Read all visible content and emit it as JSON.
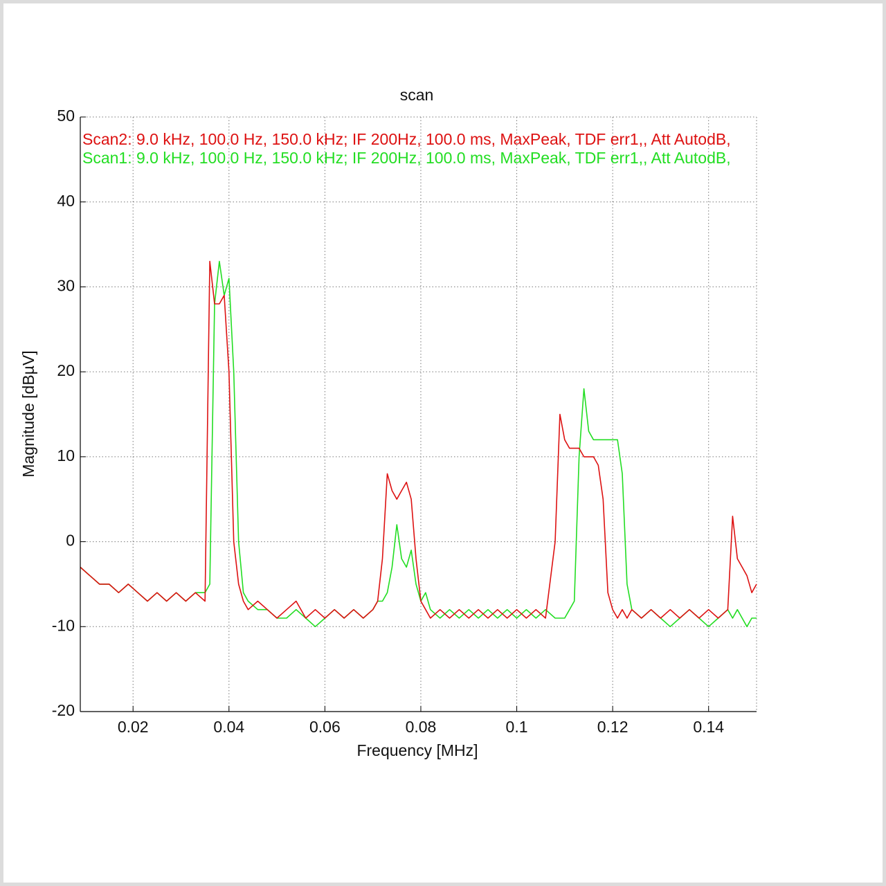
{
  "chart_data": {
    "type": "line",
    "title": "scan",
    "x_label": "Frequency [MHz]",
    "y_label": "Magnitude [dBµV]",
    "x": [
      0.009,
      0.011,
      0.013,
      0.015,
      0.017,
      0.019,
      0.021,
      0.023,
      0.025,
      0.027,
      0.029,
      0.031,
      0.033,
      0.035,
      0.036,
      0.037,
      0.038,
      0.039,
      0.04,
      0.041,
      0.042,
      0.043,
      0.044,
      0.046,
      0.048,
      0.05,
      0.052,
      0.054,
      0.056,
      0.058,
      0.06,
      0.062,
      0.064,
      0.066,
      0.068,
      0.07,
      0.071,
      0.072,
      0.073,
      0.074,
      0.075,
      0.076,
      0.077,
      0.078,
      0.079,
      0.08,
      0.081,
      0.082,
      0.084,
      0.086,
      0.088,
      0.09,
      0.092,
      0.094,
      0.096,
      0.098,
      0.1,
      0.102,
      0.104,
      0.106,
      0.108,
      0.109,
      0.11,
      0.111,
      0.112,
      0.113,
      0.114,
      0.115,
      0.116,
      0.117,
      0.118,
      0.119,
      0.12,
      0.121,
      0.122,
      0.123,
      0.124,
      0.126,
      0.128,
      0.13,
      0.132,
      0.134,
      0.136,
      0.138,
      0.14,
      0.142,
      0.144,
      0.145,
      0.146,
      0.147,
      0.148,
      0.149,
      0.15
    ],
    "series": [
      {
        "name": "Scan1: 9.0 kHz, 100.0 Hz, 150.0 kHz; IF 200Hz, 100.0 ms, MaxPeak, TDF err1,, Att AutodB,",
        "color": "#22dd22",
        "values": [
          -3,
          -4,
          -5,
          -5,
          -6,
          -5,
          -6,
          -7,
          -6,
          -7,
          -6,
          -7,
          -6,
          -6,
          -5,
          28,
          33,
          29,
          31,
          20,
          0,
          -6,
          -7,
          -8,
          -8,
          -9,
          -9,
          -8,
          -9,
          -10,
          -9,
          -8,
          -9,
          -8,
          -9,
          -8,
          -7,
          -7,
          -6,
          -3,
          2,
          -2,
          -3,
          -1,
          -5,
          -7,
          -6,
          -8,
          -9,
          -8,
          -9,
          -8,
          -9,
          -8,
          -9,
          -8,
          -9,
          -8,
          -9,
          -8,
          -9,
          -9,
          -9,
          -8,
          -7,
          10,
          18,
          13,
          12,
          12,
          12,
          12,
          12,
          12,
          8,
          -5,
          -8,
          -9,
          -8,
          -9,
          -10,
          -9,
          -8,
          -9,
          -10,
          -9,
          -8,
          -9,
          -8,
          -9,
          -10,
          -9,
          -9
        ]
      },
      {
        "name": "Scan2: 9.0 kHz, 100.0 Hz, 150.0 kHz; IF 200Hz, 100.0 ms, MaxPeak, TDF err1,, Att AutodB,",
        "color": "#dd1111",
        "values": [
          -3,
          -4,
          -5,
          -5,
          -6,
          -5,
          -6,
          -7,
          -6,
          -7,
          -6,
          -7,
          -6,
          -7,
          33,
          28,
          28,
          29,
          20,
          0,
          -5,
          -7,
          -8,
          -7,
          -8,
          -9,
          -8,
          -7,
          -9,
          -8,
          -9,
          -8,
          -9,
          -8,
          -9,
          -8,
          -7,
          -2,
          8,
          6,
          5,
          6,
          7,
          5,
          -2,
          -7,
          -8,
          -9,
          -8,
          -9,
          -8,
          -9,
          -8,
          -9,
          -8,
          -9,
          -8,
          -9,
          -8,
          -9,
          0,
          15,
          12,
          11,
          11,
          11,
          10,
          10,
          10,
          9,
          5,
          -6,
          -8,
          -9,
          -8,
          -9,
          -8,
          -9,
          -8,
          -9,
          -8,
          -9,
          -8,
          -9,
          -8,
          -9,
          -8,
          3,
          -2,
          -3,
          -4,
          -6,
          -5
        ]
      }
    ],
    "legend_order": [
      1,
      0
    ],
    "xlim": [
      0.009,
      0.15
    ],
    "ylim": [
      -20,
      50
    ],
    "xticks": [
      0.02,
      0.04,
      0.06,
      0.08,
      0.1,
      0.12,
      0.14
    ],
    "yticks": [
      -20,
      -10,
      0,
      10,
      20,
      30,
      40,
      50
    ],
    "grid": true
  }
}
